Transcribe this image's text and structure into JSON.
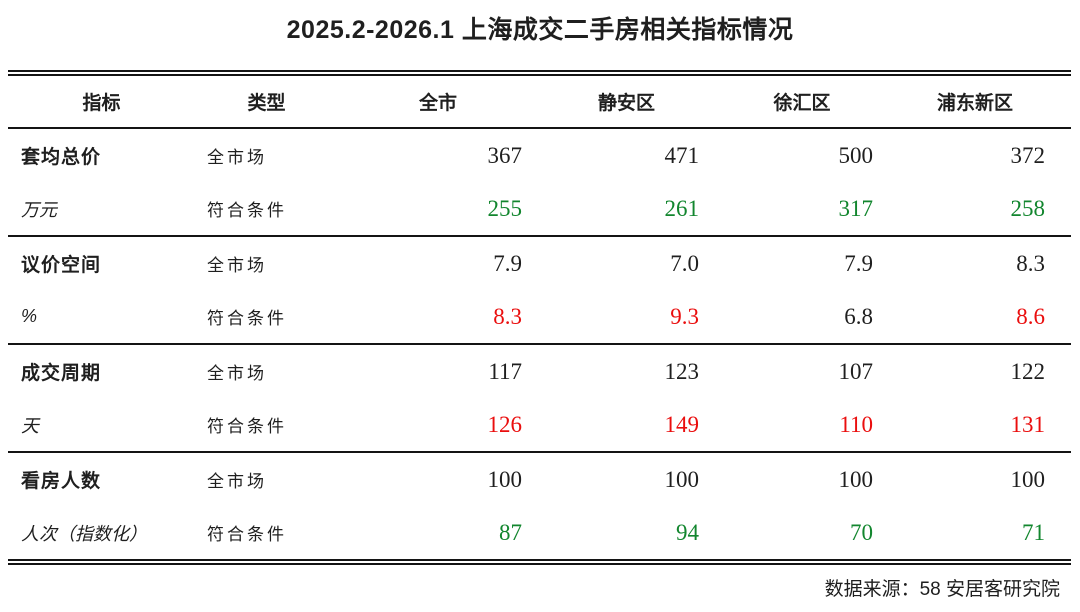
{
  "chart_data": {
    "type": "table",
    "title": "2025.2-2026.1 上海成交二手房相关指标情况",
    "columns": [
      "指标",
      "类型",
      "全市",
      "静安区",
      "徐汇区",
      "浦东新区"
    ],
    "groups": [
      {
        "indicator": "套均总价",
        "unit": "万元",
        "rows": [
          {
            "type": "全市场",
            "values": [
              "367",
              "471",
              "500",
              "372"
            ],
            "colors": [
              "black",
              "black",
              "black",
              "black"
            ]
          },
          {
            "type": "符合条件",
            "values": [
              "255",
              "261",
              "317",
              "258"
            ],
            "colors": [
              "green",
              "green",
              "green",
              "green"
            ]
          }
        ]
      },
      {
        "indicator": "议价空间",
        "unit": "%",
        "rows": [
          {
            "type": "全市场",
            "values": [
              "7.9",
              "7.0",
              "7.9",
              "8.3"
            ],
            "colors": [
              "black",
              "black",
              "black",
              "black"
            ]
          },
          {
            "type": "符合条件",
            "values": [
              "8.3",
              "9.3",
              "6.8",
              "8.6"
            ],
            "colors": [
              "red",
              "red",
              "black",
              "red"
            ]
          }
        ]
      },
      {
        "indicator": "成交周期",
        "unit": "天",
        "rows": [
          {
            "type": "全市场",
            "values": [
              "117",
              "123",
              "107",
              "122"
            ],
            "colors": [
              "black",
              "black",
              "black",
              "black"
            ]
          },
          {
            "type": "符合条件",
            "values": [
              "126",
              "149",
              "110",
              "131"
            ],
            "colors": [
              "red",
              "red",
              "red",
              "red"
            ]
          }
        ]
      },
      {
        "indicator": "看房人数",
        "unit": "人次（指数化）",
        "rows": [
          {
            "type": "全市场",
            "values": [
              "100",
              "100",
              "100",
              "100"
            ],
            "colors": [
              "black",
              "black",
              "black",
              "black"
            ]
          },
          {
            "type": "符合条件",
            "values": [
              "87",
              "94",
              "70",
              "71"
            ],
            "colors": [
              "green",
              "green",
              "green",
              "green"
            ]
          }
        ]
      }
    ],
    "source": "数据来源：58 安居客研究院",
    "palette": {
      "black": "#1f1f1f",
      "green": "#12862e",
      "red": "#ea0e0e"
    }
  }
}
